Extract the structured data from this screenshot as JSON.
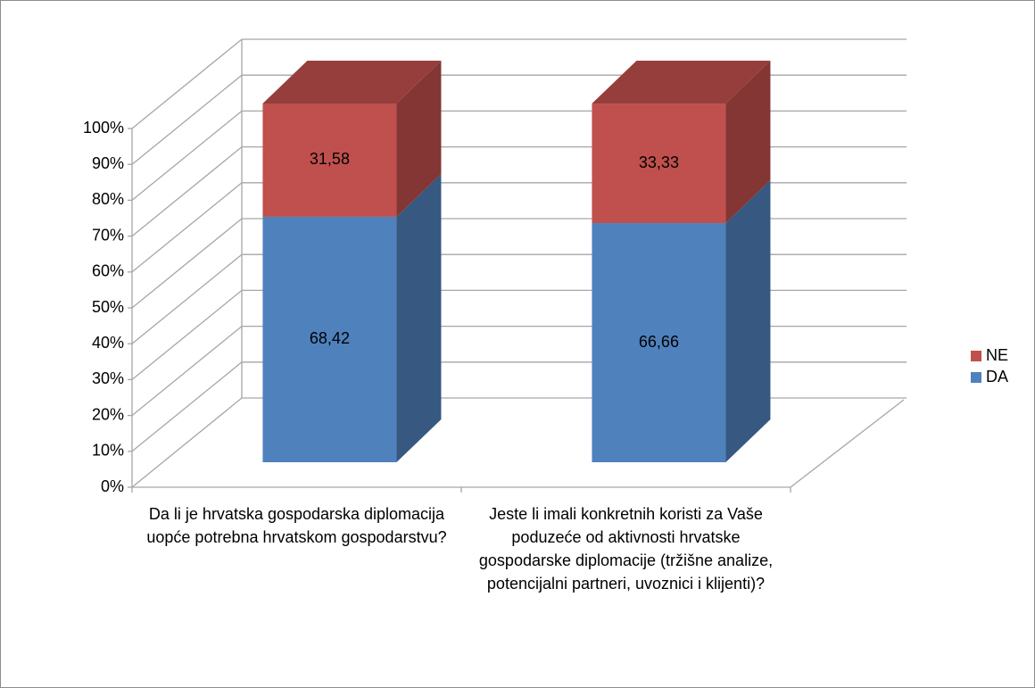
{
  "chart_data": {
    "type": "bar3d_stacked",
    "categories": [
      "Da li je hrvatska gospodarska diplomacija uopće potrebna hrvatskom gospodarstvu?",
      "Jeste li imali konkretnih koristi za Vaše poduzeće od aktivnosti hrvatske gospodarske diplomacije (tržišne analize, potencijalni partneri, uvoznici i klijenti)?"
    ],
    "series": [
      {
        "name": "DA",
        "color": "#4f81bd",
        "values": [
          68.42,
          66.66
        ],
        "value_labels": [
          "68,42",
          "66,66"
        ]
      },
      {
        "name": "NE",
        "color": "#c0504d",
        "values": [
          31.58,
          33.33
        ],
        "value_labels": [
          "31,58",
          "33,33"
        ]
      }
    ],
    "ylim": [
      0,
      100
    ],
    "yticks": [
      {
        "value": 0,
        "label": "0%"
      },
      {
        "value": 10,
        "label": "10%"
      },
      {
        "value": 20,
        "label": "20%"
      },
      {
        "value": 30,
        "label": "30%"
      },
      {
        "value": 40,
        "label": "40%"
      },
      {
        "value": 50,
        "label": "50%"
      },
      {
        "value": 60,
        "label": "60%"
      },
      {
        "value": 70,
        "label": "70%"
      },
      {
        "value": 80,
        "label": "80%"
      },
      {
        "value": 90,
        "label": "90%"
      },
      {
        "value": 100,
        "label": "100%"
      }
    ],
    "grid": true,
    "legend": "right"
  }
}
